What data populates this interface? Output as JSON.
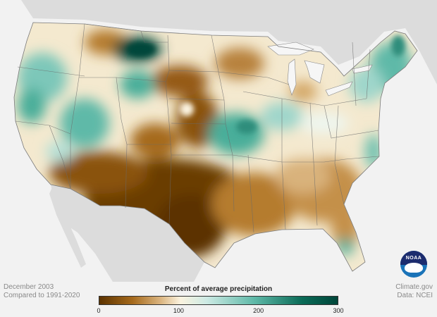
{
  "map": {
    "title": "Percent of average precipitation",
    "period": "December 2003",
    "baseline": "Compared to 1991-2020",
    "credit": "Climate.gov",
    "source": "Data: NCEI",
    "logo_text": "NOAA",
    "legend": {
      "ticks": [
        "0",
        "100",
        "200",
        "300"
      ],
      "tick_values": [
        0,
        100,
        200,
        300
      ],
      "range": [
        0,
        300
      ],
      "colors": [
        "#5c3300",
        "#a66a1c",
        "#dcb783",
        "#fbf3df",
        "#cdeae4",
        "#5fb9a8",
        "#0b6b57",
        "#00463a"
      ]
    },
    "colors": {
      "background": "#f2f2f2",
      "neighbor_land": "#dcdcdc",
      "water": "#f6f6f6",
      "state_lines": "#6a6a6a",
      "noaa_blue": "#1a73b8"
    }
  }
}
